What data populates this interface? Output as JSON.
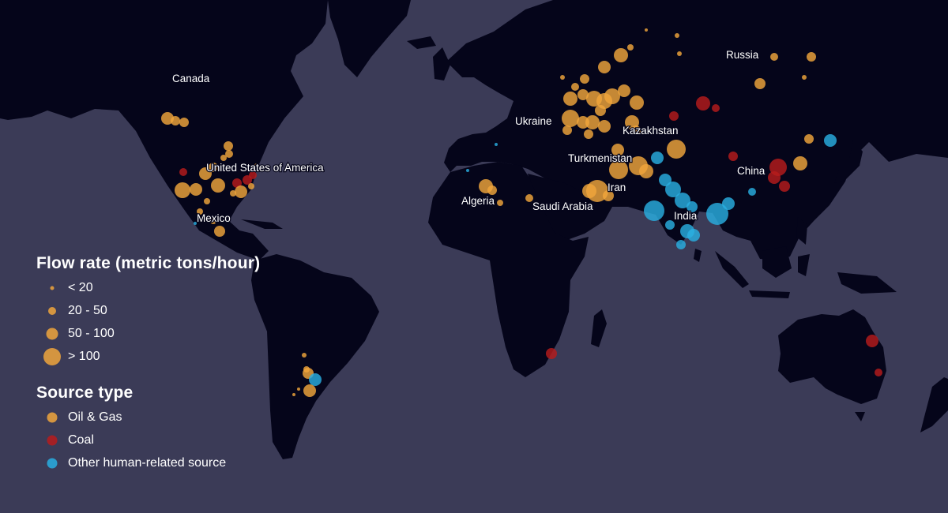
{
  "colors": {
    "ocean": "#3b3b57",
    "land": "#05051a",
    "oil_gas": "#f0a63c",
    "coal": "#b71c1c",
    "other": "#29aee0",
    "label_text": "#ffffff"
  },
  "country_labels": [
    "Canada",
    "United States of America",
    "Mexico",
    "Ukraine",
    "Kazakhstan",
    "Russia",
    "Turkmenistan",
    "Iran",
    "China",
    "Algeria",
    "Saudi Arabia",
    "India"
  ],
  "legend": {
    "flow_rate": {
      "title": "Flow rate (metric tons/hour)",
      "classes": [
        {
          "label": "< 20",
          "size_rank": 1
        },
        {
          "label": "20 - 50",
          "size_rank": 2
        },
        {
          "label": "50 - 100",
          "size_rank": 3
        },
        {
          "label": "> 100",
          "size_rank": 4
        }
      ]
    },
    "source_type": {
      "title": "Source type",
      "types": [
        {
          "key": "oil_gas",
          "label": "Oil & Gas",
          "icon": "orange-circle-icon"
        },
        {
          "key": "coal",
          "label": "Coal",
          "icon": "red-circle-icon"
        },
        {
          "key": "other",
          "label": "Other human-related source",
          "icon": "blue-circle-icon"
        }
      ]
    }
  }
}
